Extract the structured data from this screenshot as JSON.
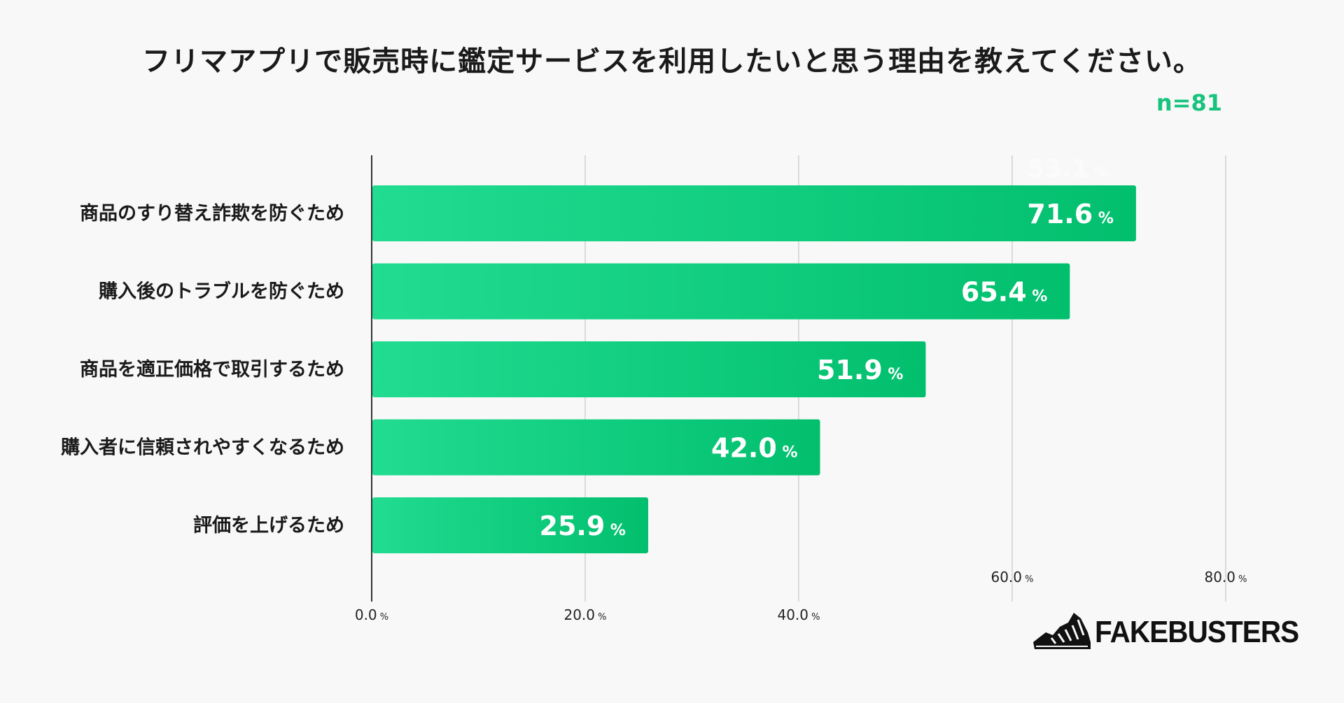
{
  "chart_data": {
    "type": "bar",
    "orientation": "horizontal",
    "title": "フリマアプリで販売時に鑑定サービスを利用したいと思う理由を教えてください。",
    "sample_size": "n=81",
    "categories": [
      "商品のすり替え詐欺を防ぐため",
      "購入後のトラブルを防ぐため",
      "商品を適正価格で取引するため",
      "購入者に信頼されやすくなるため",
      "評価を上げるため"
    ],
    "values": [
      71.6,
      65.4,
      51.9,
      42.0,
      25.9
    ],
    "value_labels": [
      "71.6",
      "65.4",
      "51.9",
      "42.0",
      "25.9"
    ],
    "ghost_label": "53.1",
    "value_unit": "%",
    "xlim": [
      0,
      80
    ],
    "xticks": [
      {
        "value": 0,
        "label": "0.0"
      },
      {
        "value": 20,
        "label": "20.0"
      },
      {
        "value": 40,
        "label": "40.0"
      },
      {
        "value": 60,
        "label": "60.0"
      },
      {
        "value": 80,
        "label": "80.0"
      }
    ],
    "tick_unit": "%",
    "grid": true,
    "colors": {
      "bar_start": "#21dc91",
      "bar_end": "#02bf6e",
      "accent": "#17c37d",
      "grid": "#cfcfcf",
      "axis": "#333333"
    }
  },
  "brand": {
    "name": "FAKEBUSTERS"
  }
}
